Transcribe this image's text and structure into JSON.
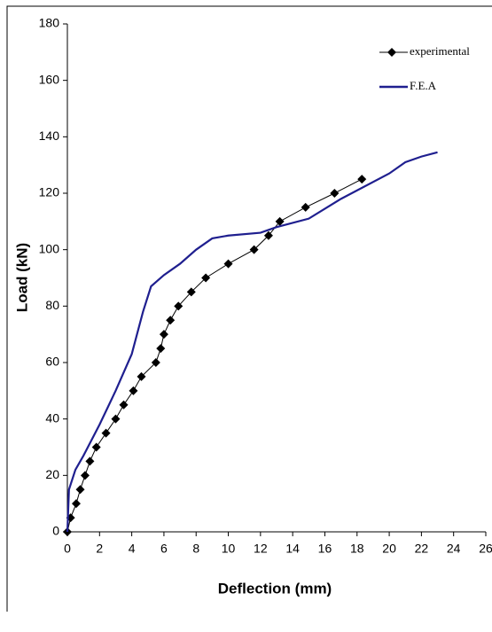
{
  "chart_data": {
    "type": "line",
    "xlabel": "Deflection (mm)",
    "ylabel": "Load (kN)",
    "xlim": [
      0,
      26
    ],
    "ylim": [
      0,
      180
    ],
    "xticks": [
      0,
      2,
      4,
      6,
      8,
      10,
      12,
      14,
      16,
      18,
      20,
      22,
      24,
      26
    ],
    "yticks": [
      0,
      20,
      40,
      60,
      80,
      100,
      120,
      140,
      160,
      180
    ],
    "legend": "upper right",
    "series": [
      {
        "name": "experimental",
        "color": "#000000",
        "marker": "diamond",
        "x": [
          0,
          0.2,
          0.55,
          0.8,
          1.1,
          1.4,
          1.8,
          2.4,
          3.0,
          3.5,
          4.1,
          4.6,
          5.5,
          5.8,
          6.0,
          6.4,
          6.9,
          7.7,
          8.6,
          10.0,
          11.6,
          12.5,
          13.2,
          14.8,
          16.6,
          18.3
        ],
        "values": [
          0,
          5,
          10,
          15,
          20,
          25,
          30,
          35,
          40,
          45,
          50,
          55,
          60,
          65,
          70,
          75,
          80,
          85,
          90,
          95,
          100,
          105,
          110,
          115,
          120,
          125
        ]
      },
      {
        "name": "F.E.A",
        "color": "#1f1f8f",
        "marker": "none",
        "x": [
          0,
          0.1,
          0.5,
          1,
          2,
          3,
          4,
          4.7,
          5.2,
          6,
          7,
          8,
          9,
          10,
          12,
          13,
          15,
          17,
          20,
          21,
          22,
          23
        ],
        "values": [
          0,
          15,
          22,
          27,
          38,
          50,
          63,
          78,
          87,
          91,
          95,
          100,
          104,
          105,
          106,
          108,
          111,
          118,
          127,
          131,
          133,
          134.5
        ]
      }
    ]
  }
}
